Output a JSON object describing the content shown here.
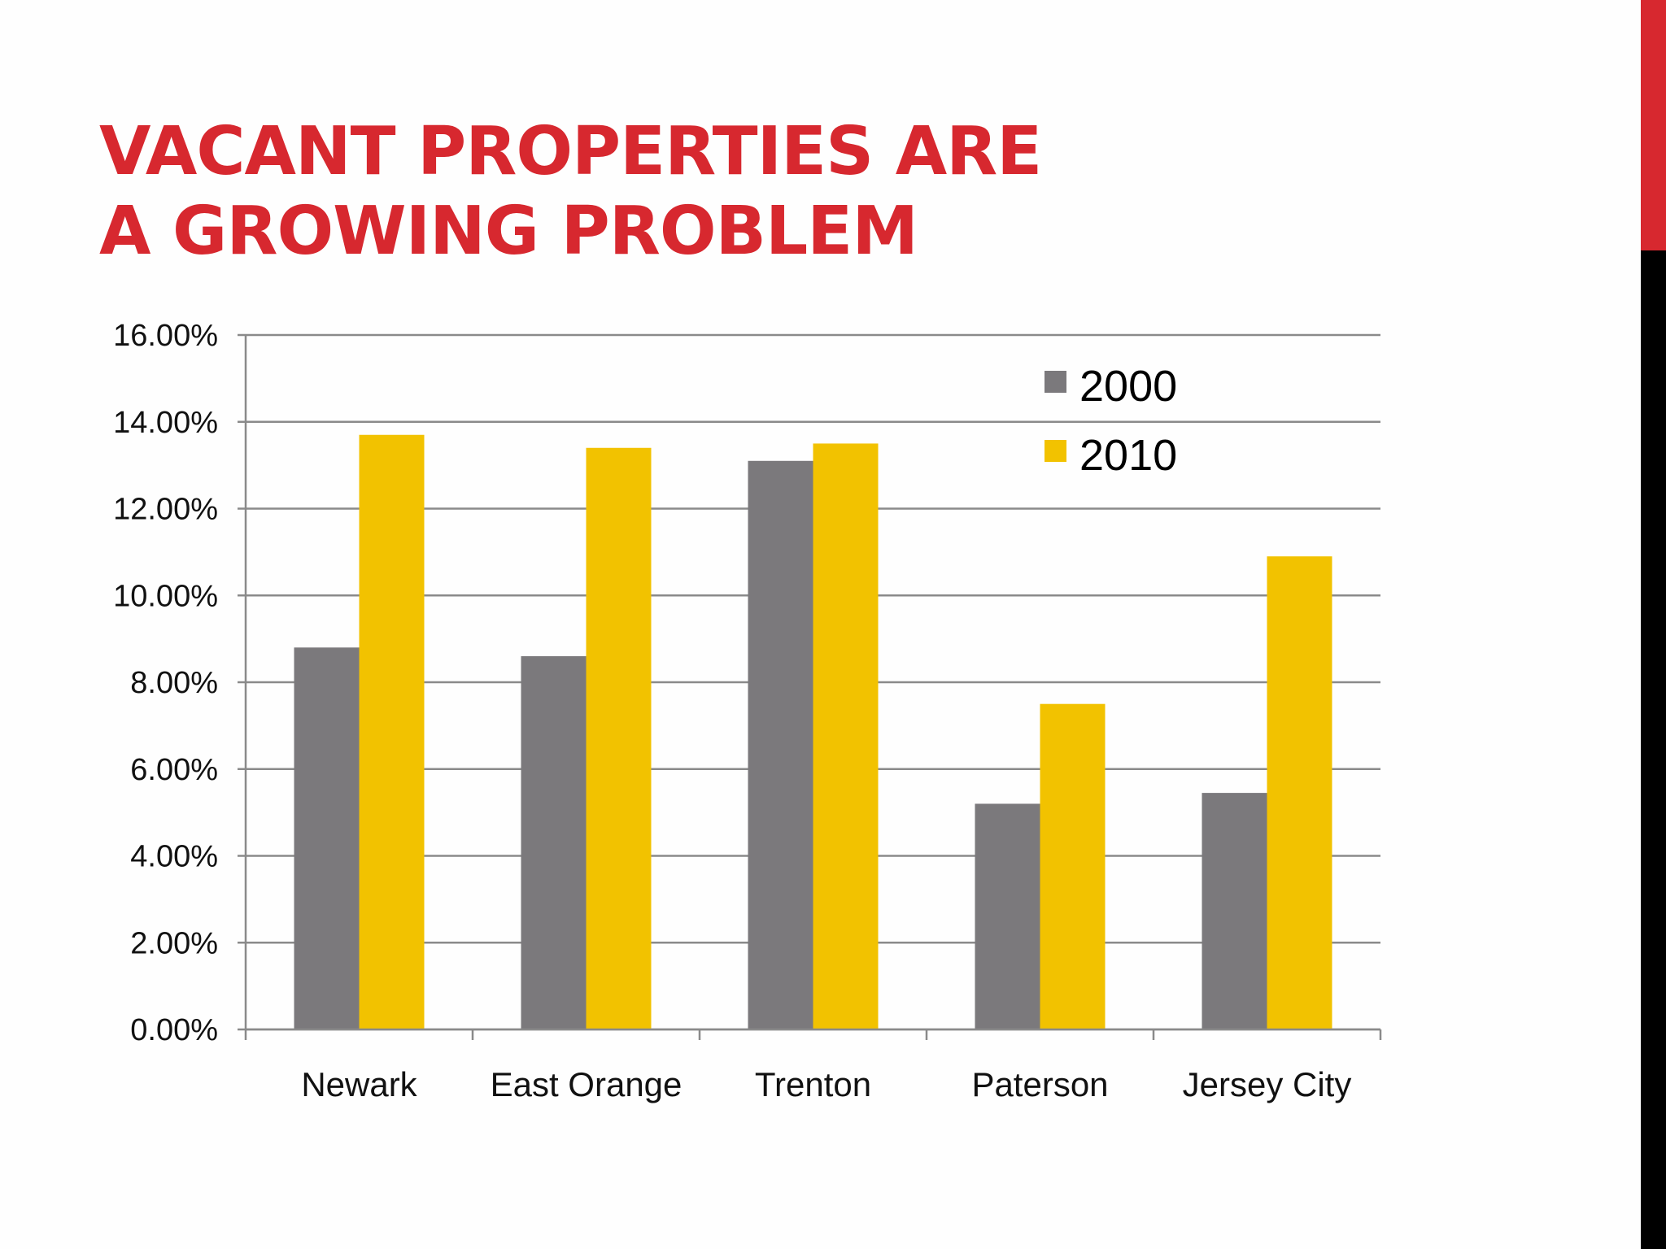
{
  "slide": {
    "title_line1": "VACANT PROPERTIES ARE",
    "title_line2": "A GROWING PROBLEM"
  },
  "colors": {
    "title": "#d7282f",
    "accent_bar_top": "#d7282f",
    "accent_bar_bottom": "#000000",
    "series_2000": "#7b797c",
    "series_2010": "#f2c200",
    "gridline": "#8a8a8a"
  },
  "chart_data": {
    "type": "bar",
    "title": "",
    "xlabel": "",
    "ylabel": "",
    "categories": [
      "Newark",
      "East Orange",
      "Trenton",
      "Paterson",
      "Jersey City"
    ],
    "series": [
      {
        "name": "2000",
        "values": [
          8.8,
          8.6,
          13.1,
          5.2,
          5.45
        ]
      },
      {
        "name": "2010",
        "values": [
          13.7,
          13.4,
          13.5,
          7.5,
          10.9
        ]
      }
    ],
    "ylim": [
      0,
      16
    ],
    "yticks": [
      0,
      2,
      4,
      6,
      8,
      10,
      12,
      14,
      16
    ],
    "ytick_labels": [
      "0.00%",
      "2.00%",
      "4.00%",
      "6.00%",
      "8.00%",
      "10.00%",
      "12.00%",
      "14.00%",
      "16.00%"
    ],
    "grid": true,
    "legend_position": "top-right"
  }
}
